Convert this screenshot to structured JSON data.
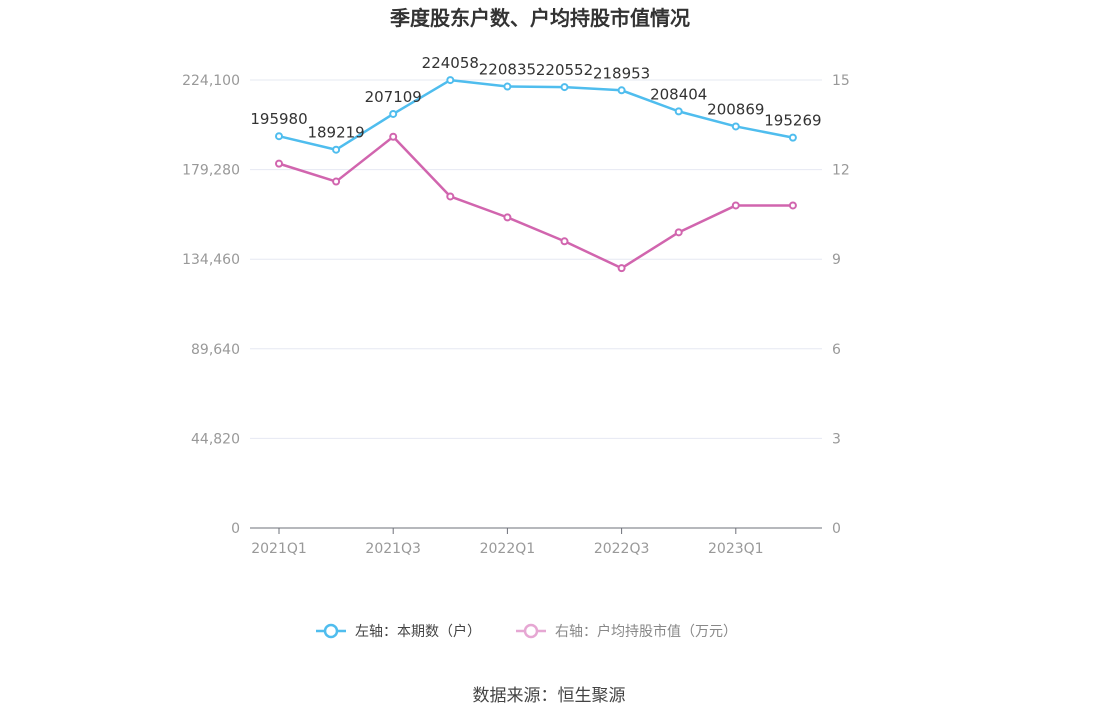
{
  "chart_data": {
    "type": "line",
    "title": "季度股东户数、户均持股市值情况",
    "categories": [
      "2021Q1",
      "2021Q2",
      "2021Q3",
      "2021Q4",
      "2022Q1",
      "2022Q2",
      "2022Q3",
      "2022Q4",
      "2023Q1",
      "2023Q2"
    ],
    "x_tick_labels": [
      "2021Q1",
      "2021Q3",
      "2022Q1",
      "2022Q3",
      "2023Q1"
    ],
    "left_axis": {
      "ylim": [
        0,
        224100
      ],
      "tick_labels": [
        "0",
        "44,820",
        "89,640",
        "134,460",
        "179,280",
        "224,100"
      ]
    },
    "right_axis": {
      "ylim": [
        0,
        15
      ],
      "tick_labels": [
        "0",
        "3",
        "6",
        "9",
        "12",
        "15"
      ]
    },
    "series": [
      {
        "name": "左轴：本期数（户）",
        "axis": "left",
        "color": "#4fbdee",
        "values": [
          195980,
          189219,
          207109,
          224058,
          220835,
          220552,
          218953,
          208404,
          200869,
          195269
        ],
        "labels": [
          "195980",
          "189219",
          "207109",
          "224058",
          "220835",
          "220552",
          "218953",
          "208404",
          "200869",
          "195269"
        ]
      },
      {
        "name": "右轴：户均持股市值（万元）",
        "axis": "right",
        "color": "#d165ae",
        "values": [
          12.2,
          11.6,
          13.1,
          11.1,
          10.4,
          9.6,
          8.7,
          9.9,
          10.8,
          10.8
        ]
      }
    ],
    "grid": true,
    "legend_position": "bottom"
  },
  "source": "数据来源：恒生聚源"
}
